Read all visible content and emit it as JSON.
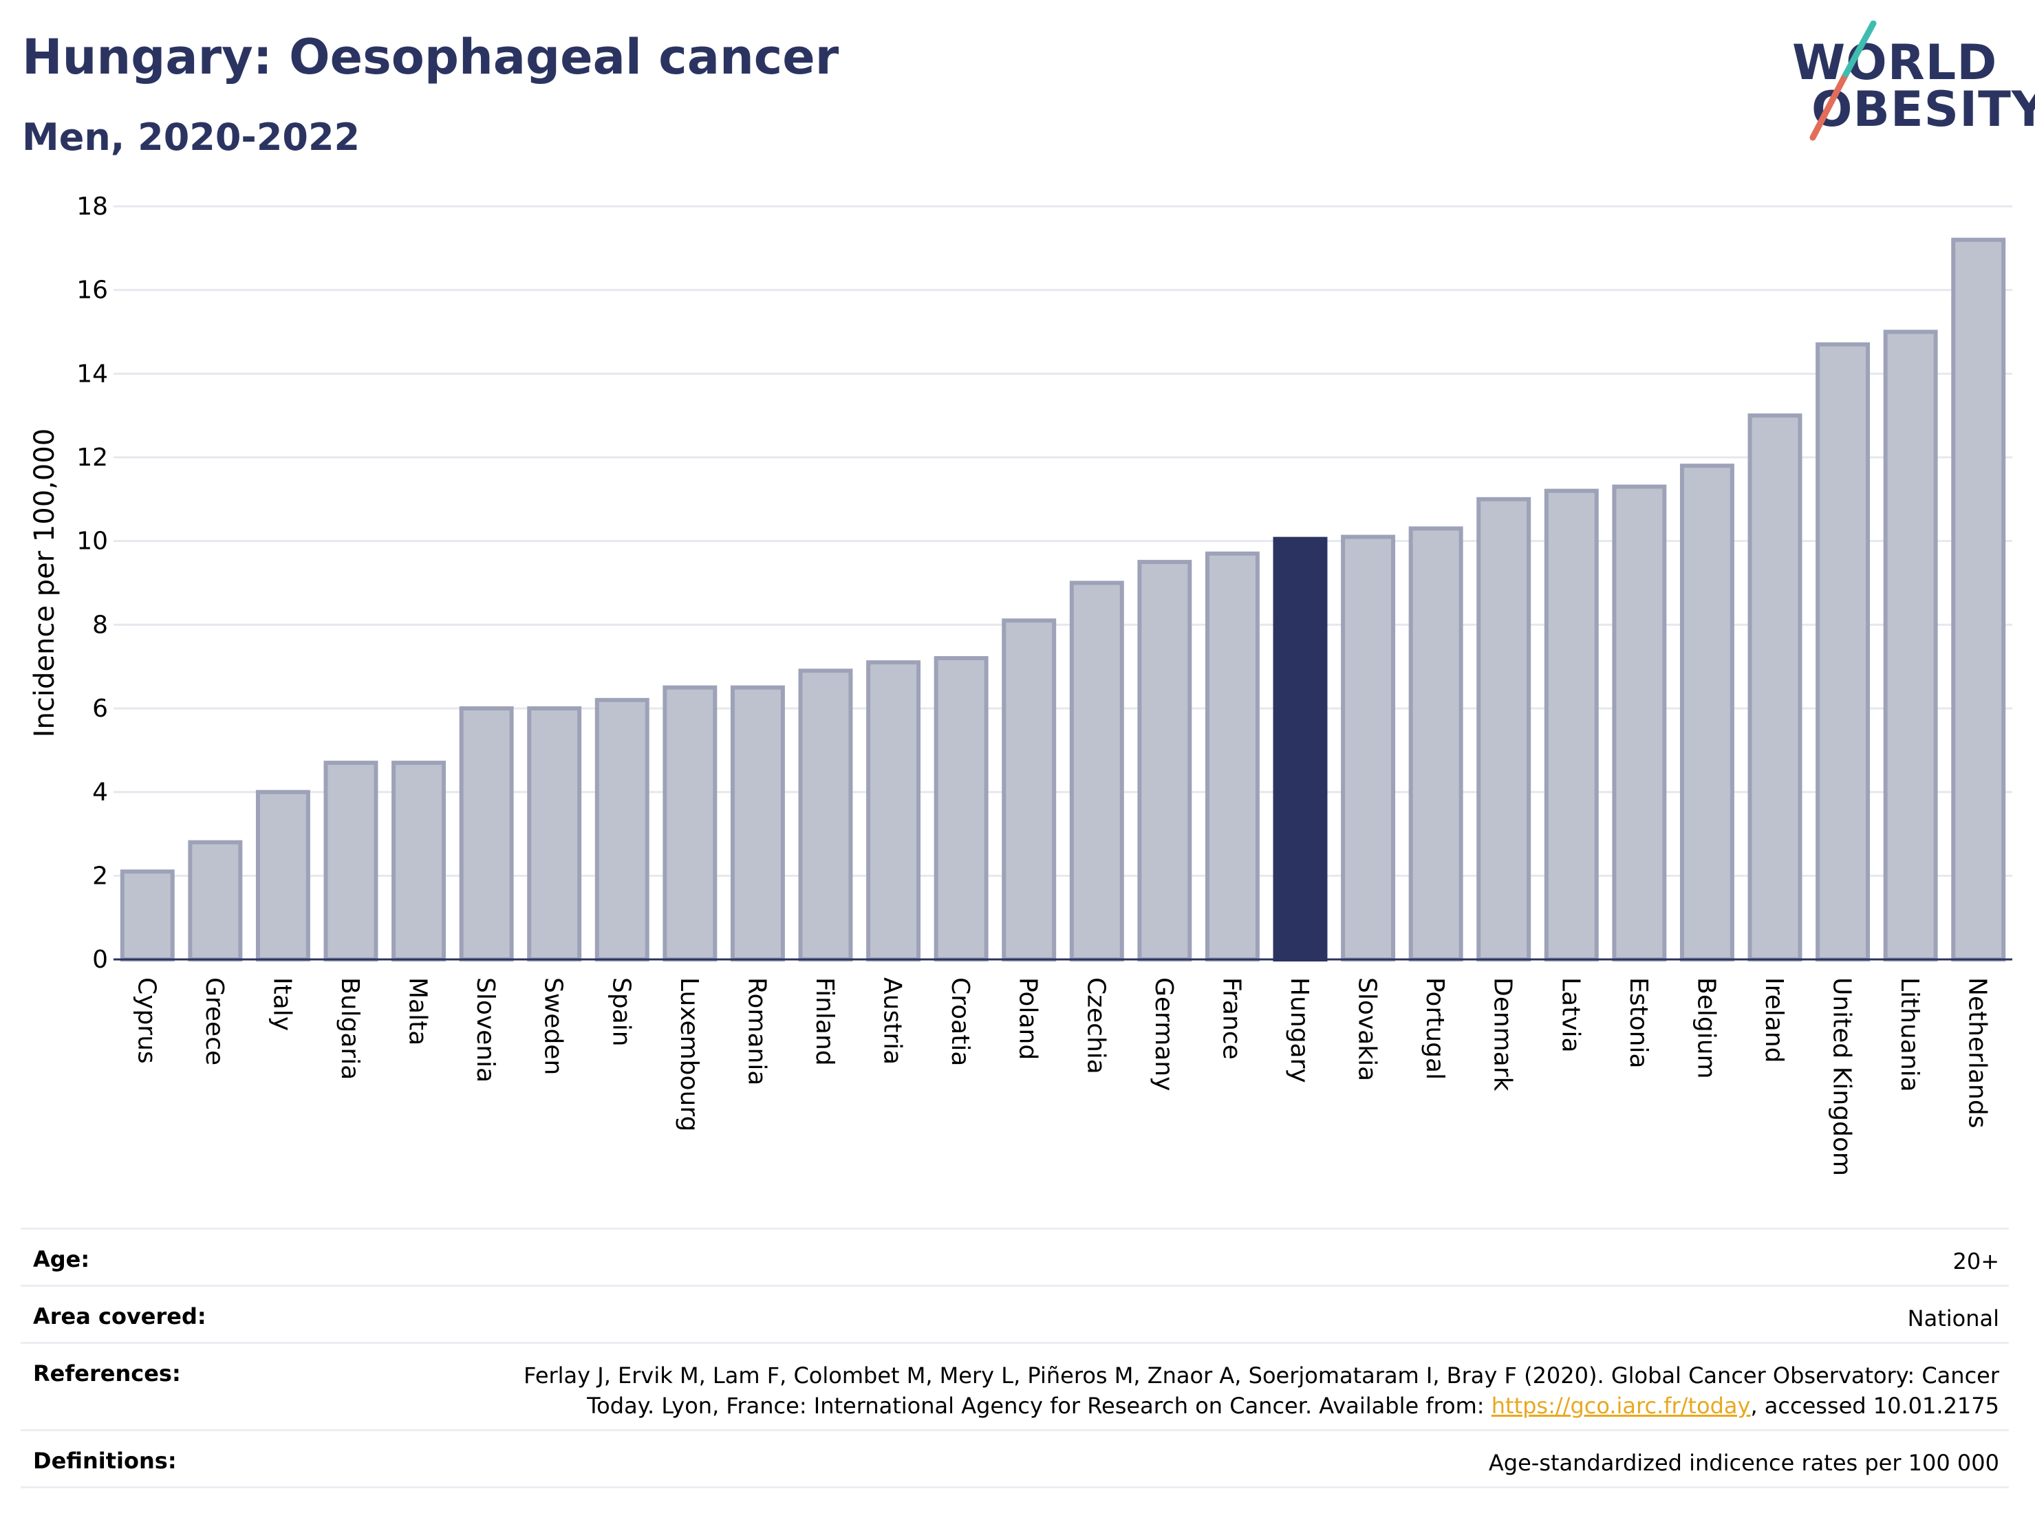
{
  "header": {
    "title": "Hungary: Oesophageal cancer",
    "subtitle": "Men, 2020-2022"
  },
  "logo": {
    "line1": "WORLD",
    "line2": "OBESITY",
    "colors": [
      "#2b3461",
      "#e26d5a",
      "#3fbcb0"
    ]
  },
  "chart_data": {
    "type": "bar",
    "categories": [
      "Cyprus",
      "Greece",
      "Italy",
      "Bulgaria",
      "Malta",
      "Slovenia",
      "Sweden",
      "Spain",
      "Luxembourg",
      "Romania",
      "Finland",
      "Austria",
      "Croatia",
      "Poland",
      "Czechia",
      "Germany",
      "France",
      "Hungary",
      "Slovakia",
      "Portugal",
      "Denmark",
      "Latvia",
      "Estonia",
      "Belgium",
      "Ireland",
      "United Kingdom",
      "Lithuania",
      "Netherlands"
    ],
    "values": [
      2.1,
      2.8,
      4.0,
      4.7,
      4.7,
      6.0,
      6.0,
      6.2,
      6.5,
      6.5,
      6.9,
      7.1,
      7.2,
      8.1,
      9.0,
      9.5,
      9.7,
      10.05,
      10.1,
      10.3,
      11.0,
      11.2,
      11.3,
      11.8,
      13.0,
      14.7,
      15.0,
      17.2
    ],
    "highlight": "Hungary",
    "ylabel": "Incidence per 100,000",
    "ylim": [
      0,
      18
    ],
    "yticks": [
      0,
      2,
      4,
      6,
      8,
      10,
      12,
      14,
      16,
      18
    ],
    "grid": true,
    "colors": {
      "bar": "#bec2ce",
      "bar_border": "#9da2b8",
      "highlight": "#2b3461",
      "grid": "#e6e8ee",
      "axis": "#2b3461"
    }
  },
  "info": {
    "age_label": "Age:",
    "age_value": "20+",
    "area_label": "Area covered:",
    "area_value": "National",
    "ref_label": "References:",
    "ref_line1": "Ferlay J, Ervik M, Lam F, Colombet M, Mery L, Piñeros M, Znaor A, Soerjomataram I, Bray F (2020). Global Cancer Observatory: Cancer",
    "ref_line2_pre": "Today. Lyon, France: International Agency for Research on Cancer. Available from: ",
    "ref_link": "https://gco.iarc.fr/today",
    "ref_line2_post": ", accessed 10.01.2175",
    "def_label": "Definitions:",
    "def_value": "Age-standardized indicence rates per 100 000"
  }
}
